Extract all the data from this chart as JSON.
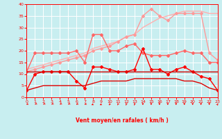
{
  "x": [
    0,
    1,
    2,
    3,
    4,
    5,
    6,
    7,
    8,
    9,
    10,
    11,
    12,
    13,
    14,
    15,
    16,
    17,
    18,
    19,
    20,
    21,
    22,
    23
  ],
  "series": [
    {
      "color": "#FFB0B0",
      "alpha": 1.0,
      "lw": 1.0,
      "marker": null,
      "ms": 0,
      "y": [
        12,
        13,
        14,
        15,
        16,
        17,
        18,
        19,
        21,
        22,
        23,
        24,
        26,
        27,
        30,
        32,
        34,
        35,
        36,
        37,
        37,
        37,
        36,
        36
      ]
    },
    {
      "color": "#FF9999",
      "alpha": 1.0,
      "lw": 1.0,
      "marker": "D",
      "ms": 2.0,
      "y": [
        11,
        12,
        13,
        14,
        15,
        16,
        17,
        18,
        20,
        21,
        22,
        24,
        26,
        27,
        35,
        38,
        35,
        33,
        36,
        36,
        36,
        36,
        19,
        16
      ]
    },
    {
      "color": "#FF6666",
      "alpha": 1.0,
      "lw": 1.0,
      "marker": "D",
      "ms": 2.0,
      "y": [
        11,
        19,
        19,
        19,
        19,
        19,
        20,
        15,
        27,
        27,
        20,
        20,
        22,
        23,
        19,
        18,
        18,
        18,
        19,
        20,
        19,
        19,
        15,
        15
      ]
    },
    {
      "color": "#FF0000",
      "alpha": 1.0,
      "lw": 1.0,
      "marker": "D",
      "ms": 2.0,
      "y": [
        3,
        10,
        11,
        11,
        11,
        11,
        7,
        4,
        13,
        13,
        12,
        11,
        11,
        12,
        21,
        12,
        12,
        10,
        12,
        13,
        11,
        9,
        8,
        3
      ]
    },
    {
      "color": "#CC0000",
      "alpha": 1.0,
      "lw": 1.0,
      "marker": null,
      "ms": 0,
      "y": [
        11,
        11,
        11,
        11,
        11,
        11,
        11,
        11,
        11,
        11,
        11,
        11,
        11,
        11,
        11,
        11,
        11,
        11,
        11,
        11,
        11,
        11,
        11,
        11
      ]
    },
    {
      "color": "#DD0000",
      "alpha": 1.0,
      "lw": 1.0,
      "marker": null,
      "ms": 0,
      "y": [
        3,
        4,
        5,
        5,
        5,
        5,
        5,
        5,
        6,
        7,
        7,
        7,
        7,
        8,
        8,
        8,
        8,
        8,
        8,
        7,
        7,
        6,
        4,
        3
      ]
    }
  ],
  "xlabel": "Vent moyen/en rafales ( km/h )",
  "xlim": [
    0,
    23
  ],
  "ylim": [
    0,
    40
  ],
  "xticks": [
    0,
    1,
    2,
    3,
    4,
    5,
    6,
    7,
    8,
    9,
    10,
    11,
    12,
    13,
    14,
    15,
    16,
    17,
    18,
    19,
    20,
    21,
    22,
    23
  ],
  "yticks": [
    0,
    5,
    10,
    15,
    20,
    25,
    30,
    35,
    40
  ],
  "background_color": "#C8EEF0",
  "grid_color": "#FFFFFF",
  "tick_color": "#FF0000",
  "label_color": "#FF0000",
  "arrow_angles": [
    225,
    235,
    235,
    235,
    235,
    235,
    230,
    230,
    240,
    240,
    255,
    260,
    265,
    265,
    270,
    270,
    270,
    270,
    270,
    270,
    270,
    270,
    270,
    80
  ]
}
